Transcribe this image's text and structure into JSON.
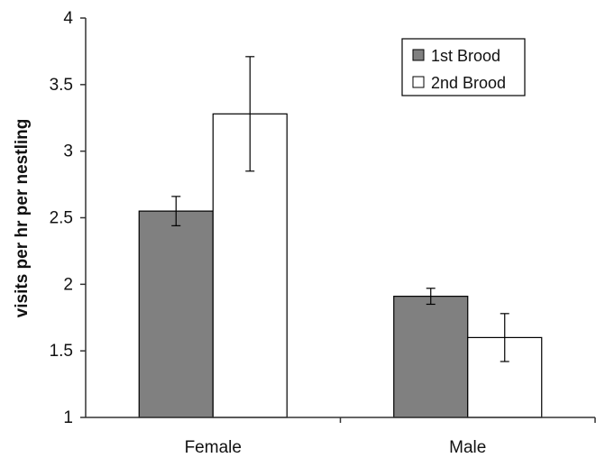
{
  "chart_data": {
    "type": "bar",
    "title": "",
    "xlabel": "",
    "ylabel": "visits per hr per nestling",
    "ylim": [
      1,
      4
    ],
    "yticks": [
      1,
      1.5,
      2,
      2.5,
      3,
      3.5,
      4
    ],
    "ytick_labels": [
      "1",
      "1.5",
      "2",
      "2.5",
      "3",
      "3.5",
      "4"
    ],
    "categories": [
      "Female",
      "Male"
    ],
    "series": [
      {
        "name": "1st Brood",
        "color": "#808080",
        "values": [
          2.55,
          1.91
        ],
        "error": [
          0.11,
          0.06
        ]
      },
      {
        "name": "2nd Brood",
        "color": "#ffffff",
        "values": [
          3.28,
          1.6
        ],
        "error": [
          0.43,
          0.18
        ]
      }
    ],
    "error_bars": true,
    "legend_position": "top-right",
    "grid": false
  }
}
